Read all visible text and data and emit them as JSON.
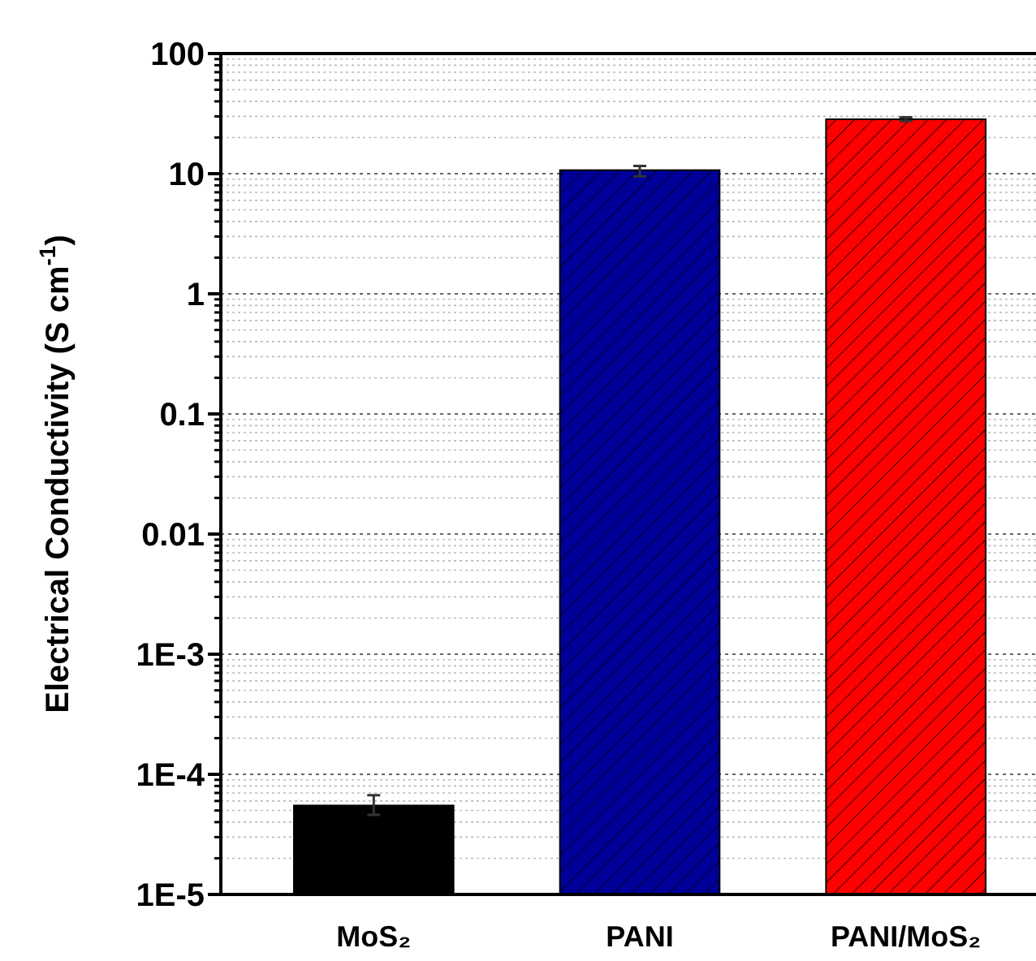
{
  "chart_data": {
    "type": "bar",
    "ylabel": "Electrical Conductivity (S cm$^{-1}$)",
    "categories": [
      "MoS₂",
      "PANI",
      "PANI/MoS₂"
    ],
    "values": [
      5.5e-05,
      10.7,
      28.4
    ],
    "colors": [
      "#000000",
      "#000099",
      "#ff0000"
    ],
    "errors": [
      [
        4.6e-05,
        6.7e-05
      ],
      [
        9.5,
        11.6
      ],
      [
        27.5,
        29.5
      ]
    ],
    "log": true,
    "ylim": [
      1e-05,
      100
    ],
    "yticks": [
      {
        "value": 1e-05,
        "label": "1E-5"
      },
      {
        "value": 0.0001,
        "label": "1E-4"
      },
      {
        "value": 0.001,
        "label": "1E-3"
      },
      0.01,
      0.1,
      1,
      10,
      100
    ],
    "grid": true
  }
}
